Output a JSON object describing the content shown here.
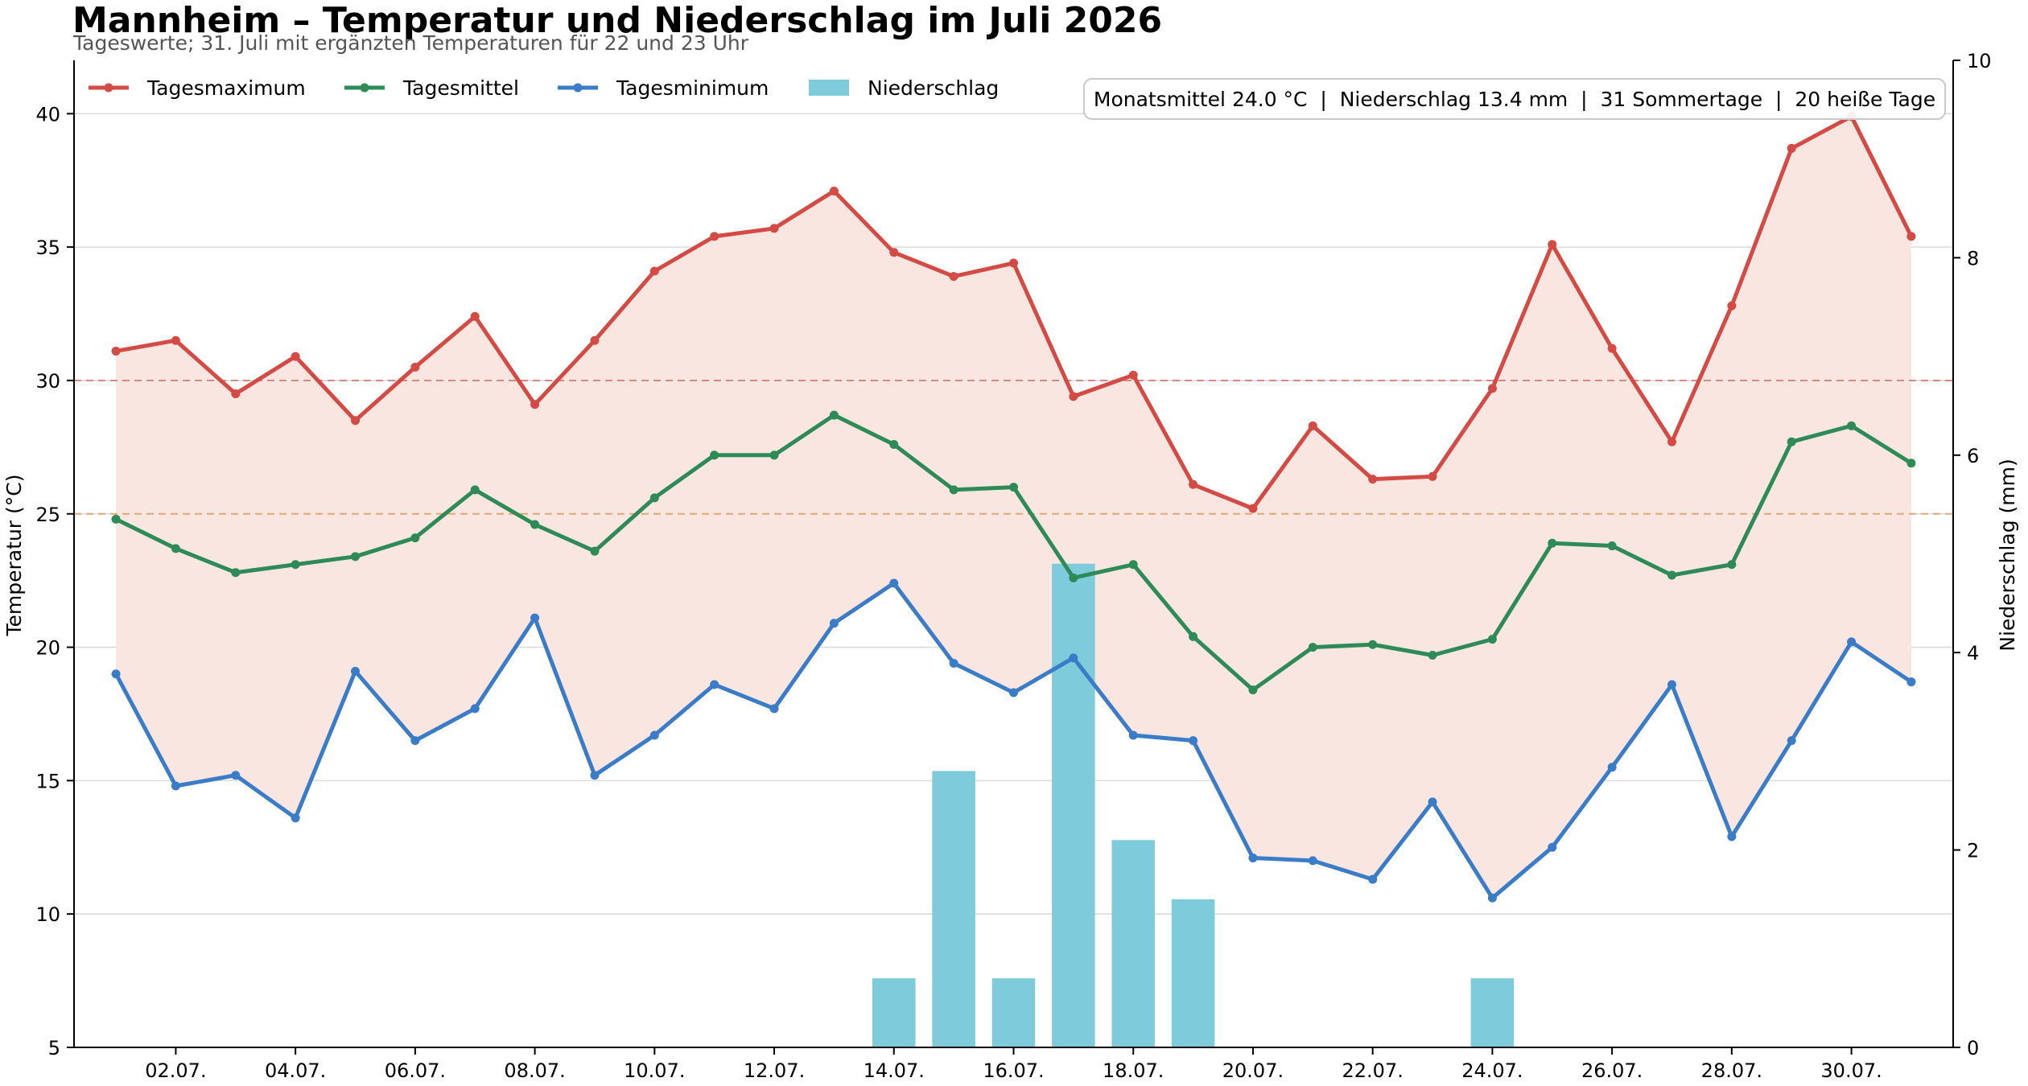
{
  "chart_data": {
    "type": "line",
    "title": "Mannheim – Temperatur und Niederschlag im Juli 2026",
    "subtitle": "Tageswerte; 31. Juli mit ergänzten Temperaturen für 22 und 23 Uhr",
    "ylabel": "Temperatur (°C)",
    "y2label": "Niederschlag (mm)",
    "ylim": [
      5,
      42
    ],
    "y2lim": [
      0,
      10
    ],
    "yticks": [
      "5",
      "10",
      "15",
      "20",
      "25",
      "30",
      "35",
      "40"
    ],
    "y2ticks": [
      "0",
      "2",
      "4",
      "6",
      "8",
      "10"
    ],
    "xticks": [
      "02.07.",
      "04.07.",
      "06.07.",
      "08.07.",
      "10.07.",
      "12.07.",
      "14.07.",
      "16.07.",
      "18.07.",
      "20.07.",
      "22.07.",
      "24.07.",
      "26.07.",
      "28.07.",
      "30.07."
    ],
    "x": [
      1,
      2,
      3,
      4,
      5,
      6,
      7,
      8,
      9,
      10,
      11,
      12,
      13,
      14,
      15,
      16,
      17,
      18,
      19,
      20,
      21,
      22,
      23,
      24,
      25,
      26,
      27,
      28,
      29,
      30,
      31
    ],
    "reference_lines": [
      {
        "y": 30,
        "color": "#d98880"
      },
      {
        "y": 25,
        "color": "#e0a878"
      }
    ],
    "series": [
      {
        "name": "Tagesmaximum",
        "color": "#d44a44",
        "values": [
          31.1,
          31.5,
          29.5,
          30.9,
          28.5,
          30.5,
          32.4,
          29.1,
          31.5,
          34.1,
          35.4,
          35.7,
          37.1,
          34.8,
          33.9,
          34.4,
          29.4,
          30.2,
          26.1,
          25.2,
          28.3,
          26.3,
          26.4,
          29.7,
          35.1,
          31.2,
          27.7,
          32.8,
          38.7,
          39.9,
          35.4
        ]
      },
      {
        "name": "Tagesmittel",
        "color": "#2e8b57",
        "values": [
          24.8,
          23.7,
          22.8,
          23.1,
          23.4,
          24.1,
          25.9,
          24.6,
          23.6,
          25.6,
          27.2,
          27.2,
          28.7,
          27.6,
          25.9,
          26.0,
          22.6,
          23.1,
          20.4,
          18.4,
          20.0,
          20.1,
          19.7,
          20.3,
          23.9,
          23.8,
          22.7,
          23.1,
          27.7,
          28.3,
          26.9
        ]
      },
      {
        "name": "Tagesminimum",
        "color": "#3a7cc8",
        "values": [
          19.0,
          14.8,
          15.2,
          13.6,
          19.1,
          16.5,
          17.7,
          21.1,
          15.2,
          16.7,
          18.6,
          17.7,
          20.9,
          22.4,
          19.4,
          18.3,
          19.6,
          16.7,
          16.5,
          12.1,
          12.0,
          11.3,
          14.2,
          10.6,
          12.5,
          15.5,
          18.6,
          12.9,
          16.5,
          20.2,
          18.7
        ]
      },
      {
        "name": "Niederschlag",
        "color": "#7ecbdb",
        "type": "bar",
        "axis": "y2",
        "values": [
          0,
          0,
          0,
          0,
          0,
          0,
          0,
          0,
          0,
          0,
          0,
          0,
          0,
          0.7,
          2.8,
          0.7,
          4.9,
          2.1,
          1.5,
          0,
          0,
          0,
          0,
          0.7,
          0,
          0,
          0,
          0,
          0,
          0,
          0
        ]
      }
    ],
    "band_color": "#f9e6e0",
    "legend": [
      "Tagesmaximum",
      "Tagesmittel",
      "Tagesminimum",
      "Niederschlag"
    ],
    "legend_position": "top-left",
    "stats_box": "Monatsmittel 24.0 °C  |  Niederschlag 13.4 mm  |  31 Sommertage  |  20 heiße Tage",
    "grid": "horizontal"
  }
}
